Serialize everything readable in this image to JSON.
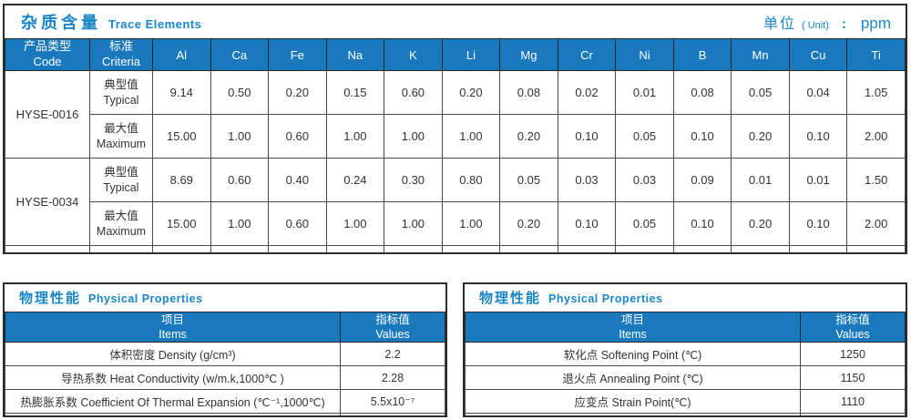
{
  "colors": {
    "header_band_blue": "#1a79bd",
    "title_text_blue": "#1a86c7",
    "outer_border": "#2d2d2d",
    "grid_line": "#4b4b4b",
    "cell_text": "#333333"
  },
  "trace_table": {
    "title_zh": "杂质含量",
    "title_en": "Trace Elements",
    "unit": {
      "label_zh": "单位",
      "label_en": "( Unit)",
      "separator": ":",
      "value": "ppm"
    },
    "headers": {
      "col_product_zh": "产品类型",
      "col_product_en": "Code",
      "col_criteria_zh": "标准",
      "col_criteria_en": "Criteria"
    },
    "elements": [
      "Al",
      "Ca",
      "Fe",
      "Na",
      "K",
      "Li",
      "Mg",
      "Cr",
      "Ni",
      "B",
      "Mn",
      "Cu",
      "Ti"
    ],
    "products": [
      {
        "code": "HYSE-0016",
        "rows": [
          {
            "criteria_zh": "典型值",
            "criteria_en": "Typical",
            "values": [
              "9.14",
              "0.50",
              "0.20",
              "0.15",
              "0.60",
              "0.20",
              "0.08",
              "0.02",
              "0.01",
              "0.08",
              "0.05",
              "0.04",
              "1.05"
            ]
          },
          {
            "criteria_zh": "最大值",
            "criteria_en": "Maximum",
            "values": [
              "15.00",
              "1.00",
              "0.60",
              "1.00",
              "1.00",
              "1.00",
              "0.20",
              "0.10",
              "0.05",
              "0.10",
              "0.20",
              "0.10",
              "2.00"
            ]
          }
        ]
      },
      {
        "code": "HYSE-0034",
        "rows": [
          {
            "criteria_zh": "典型值",
            "criteria_en": "Typical",
            "values": [
              "8.69",
              "0.60",
              "0.40",
              "0.24",
              "0.30",
              "0.80",
              "0.05",
              "0.03",
              "0.03",
              "0.09",
              "0.01",
              "0.01",
              "1.50"
            ]
          },
          {
            "criteria_zh": "最大值",
            "criteria_en": "Maximum",
            "values": [
              "15.00",
              "1.00",
              "0.60",
              "1.00",
              "1.00",
              "1.00",
              "0.20",
              "0.10",
              "0.05",
              "0.10",
              "0.20",
              "0.10",
              "2.00"
            ]
          }
        ]
      }
    ]
  },
  "physical_tables": [
    {
      "title_zh": "物理性能",
      "title_en": "Physical Properties",
      "headers": {
        "items_zh": "项目",
        "items_en": "Items",
        "values_zh": "指标值",
        "values_en": "Values"
      },
      "rows": [
        {
          "item": "体积密度 Density (g/cm³)",
          "value": "2.2"
        },
        {
          "item": "导热系数 Heat Conductivity (w/m.k,1000℃ )",
          "value": "2.28"
        },
        {
          "item": "热膨胀系数 Coefficient Of Thermal Expansion (℃⁻¹,1000℃)",
          "value": "5.5x10⁻⁷"
        }
      ]
    },
    {
      "title_zh": "物理性能",
      "title_en": "Physical Properties",
      "headers": {
        "items_zh": "项目",
        "items_en": "Items",
        "values_zh": "指标值",
        "values_en": "Values"
      },
      "rows": [
        {
          "item": "软化点 Softening Point (℃)",
          "value": "1250"
        },
        {
          "item": "退火点 Annealing Point (℃)",
          "value": "1150"
        },
        {
          "item": "应变点 Strain Point(℃)",
          "value": "1110"
        }
      ]
    }
  ]
}
